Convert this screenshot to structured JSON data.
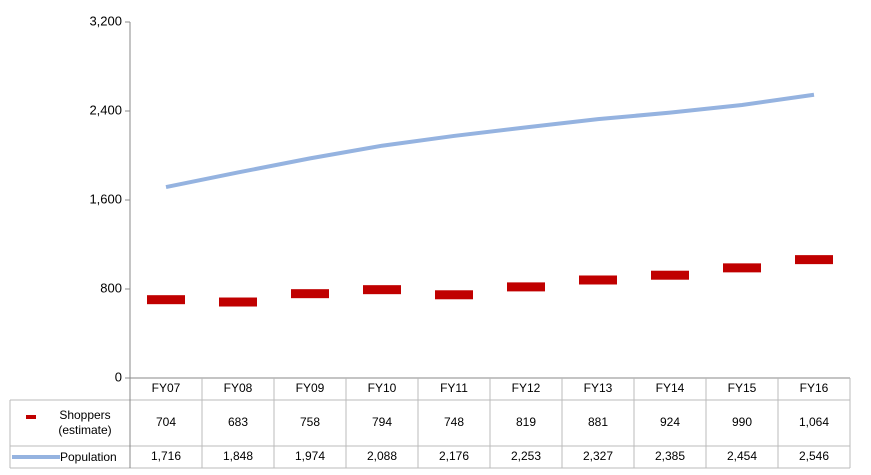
{
  "chart_data": {
    "type": "line",
    "categories": [
      "FY07",
      "FY08",
      "FY09",
      "FY10",
      "FY11",
      "FY12",
      "FY13",
      "FY14",
      "FY15",
      "FY16"
    ],
    "series": [
      {
        "name": "Shoppers (estimate)",
        "color": "#c00000",
        "style": "dash-marker",
        "values": [
          704,
          683,
          758,
          794,
          748,
          819,
          881,
          924,
          990,
          1064
        ],
        "value_labels": [
          "704",
          "683",
          "758",
          "794",
          "748",
          "819",
          "881",
          "924",
          "990",
          "1,064"
        ]
      },
      {
        "name": "Population",
        "color": "#95b3e0",
        "style": "line",
        "values": [
          1716,
          1848,
          1974,
          2088,
          2176,
          2253,
          2327,
          2385,
          2454,
          2546
        ],
        "value_labels": [
          "1,716",
          "1,848",
          "1,974",
          "2,088",
          "2,176",
          "2,253",
          "2,327",
          "2,385",
          "2,454",
          "2,546"
        ]
      }
    ],
    "ylim": [
      0,
      3200
    ],
    "yticks": [
      0,
      800,
      {
        "value": 1600,
        "label": "1,600"
      },
      {
        "value": 2400,
        "label": "2,400"
      },
      {
        "value": 3200,
        "label": "3,200"
      }
    ],
    "grid": false
  }
}
